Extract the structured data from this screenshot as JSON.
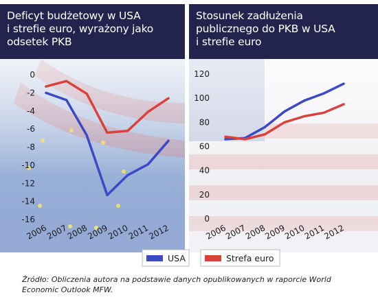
{
  "panels": [
    {
      "title_lines": [
        "Deficyt budżetowy w USA",
        "i strefie euro, wyrażony jako",
        "odsetek PKB"
      ]
    },
    {
      "title_lines": [
        "Stosunek zadłużenia",
        "publicznego do PKB w USA",
        "i strefie euro"
      ]
    }
  ],
  "colors": {
    "usa": "#3b49c4",
    "euro": "#d9413b",
    "title_bg": "#22244e"
  },
  "chart_data": [
    {
      "type": "line",
      "x": [
        "2006",
        "2007",
        "2008",
        "2009",
        "2010",
        "2011",
        "2012"
      ],
      "ylim": [
        -16,
        0
      ],
      "yticks": [
        0,
        -2,
        -4,
        -6,
        -8,
        -10,
        -12,
        -14,
        -16
      ],
      "series": [
        {
          "name": "USA",
          "values": [
            -2.0,
            -2.8,
            -6.7,
            -13.3,
            -11.1,
            -9.9,
            -7.3
          ]
        },
        {
          "name": "Strefa euro",
          "values": [
            -1.3,
            -0.7,
            -2.1,
            -6.4,
            -6.2,
            -4.1,
            -2.6
          ]
        }
      ]
    },
    {
      "type": "line",
      "x": [
        "2006",
        "2007",
        "2008",
        "2009",
        "2010",
        "2011",
        "2012"
      ],
      "ylim": [
        0,
        120
      ],
      "yticks": [
        120,
        100,
        80,
        60,
        40,
        20,
        0
      ],
      "series": [
        {
          "name": "USA",
          "values": [
            66,
            67,
            76,
            89,
            98,
            104,
            112
          ]
        },
        {
          "name": "Strefa euro",
          "values": [
            68,
            66,
            70,
            80,
            85,
            88,
            95
          ]
        }
      ]
    }
  ],
  "legend": [
    {
      "label": "USA"
    },
    {
      "label": "Strefa euro"
    }
  ],
  "source": "Źródło: Obliczenia autora na podstawie danych opublikowanych w raporcie World Economic Outlook MFW."
}
